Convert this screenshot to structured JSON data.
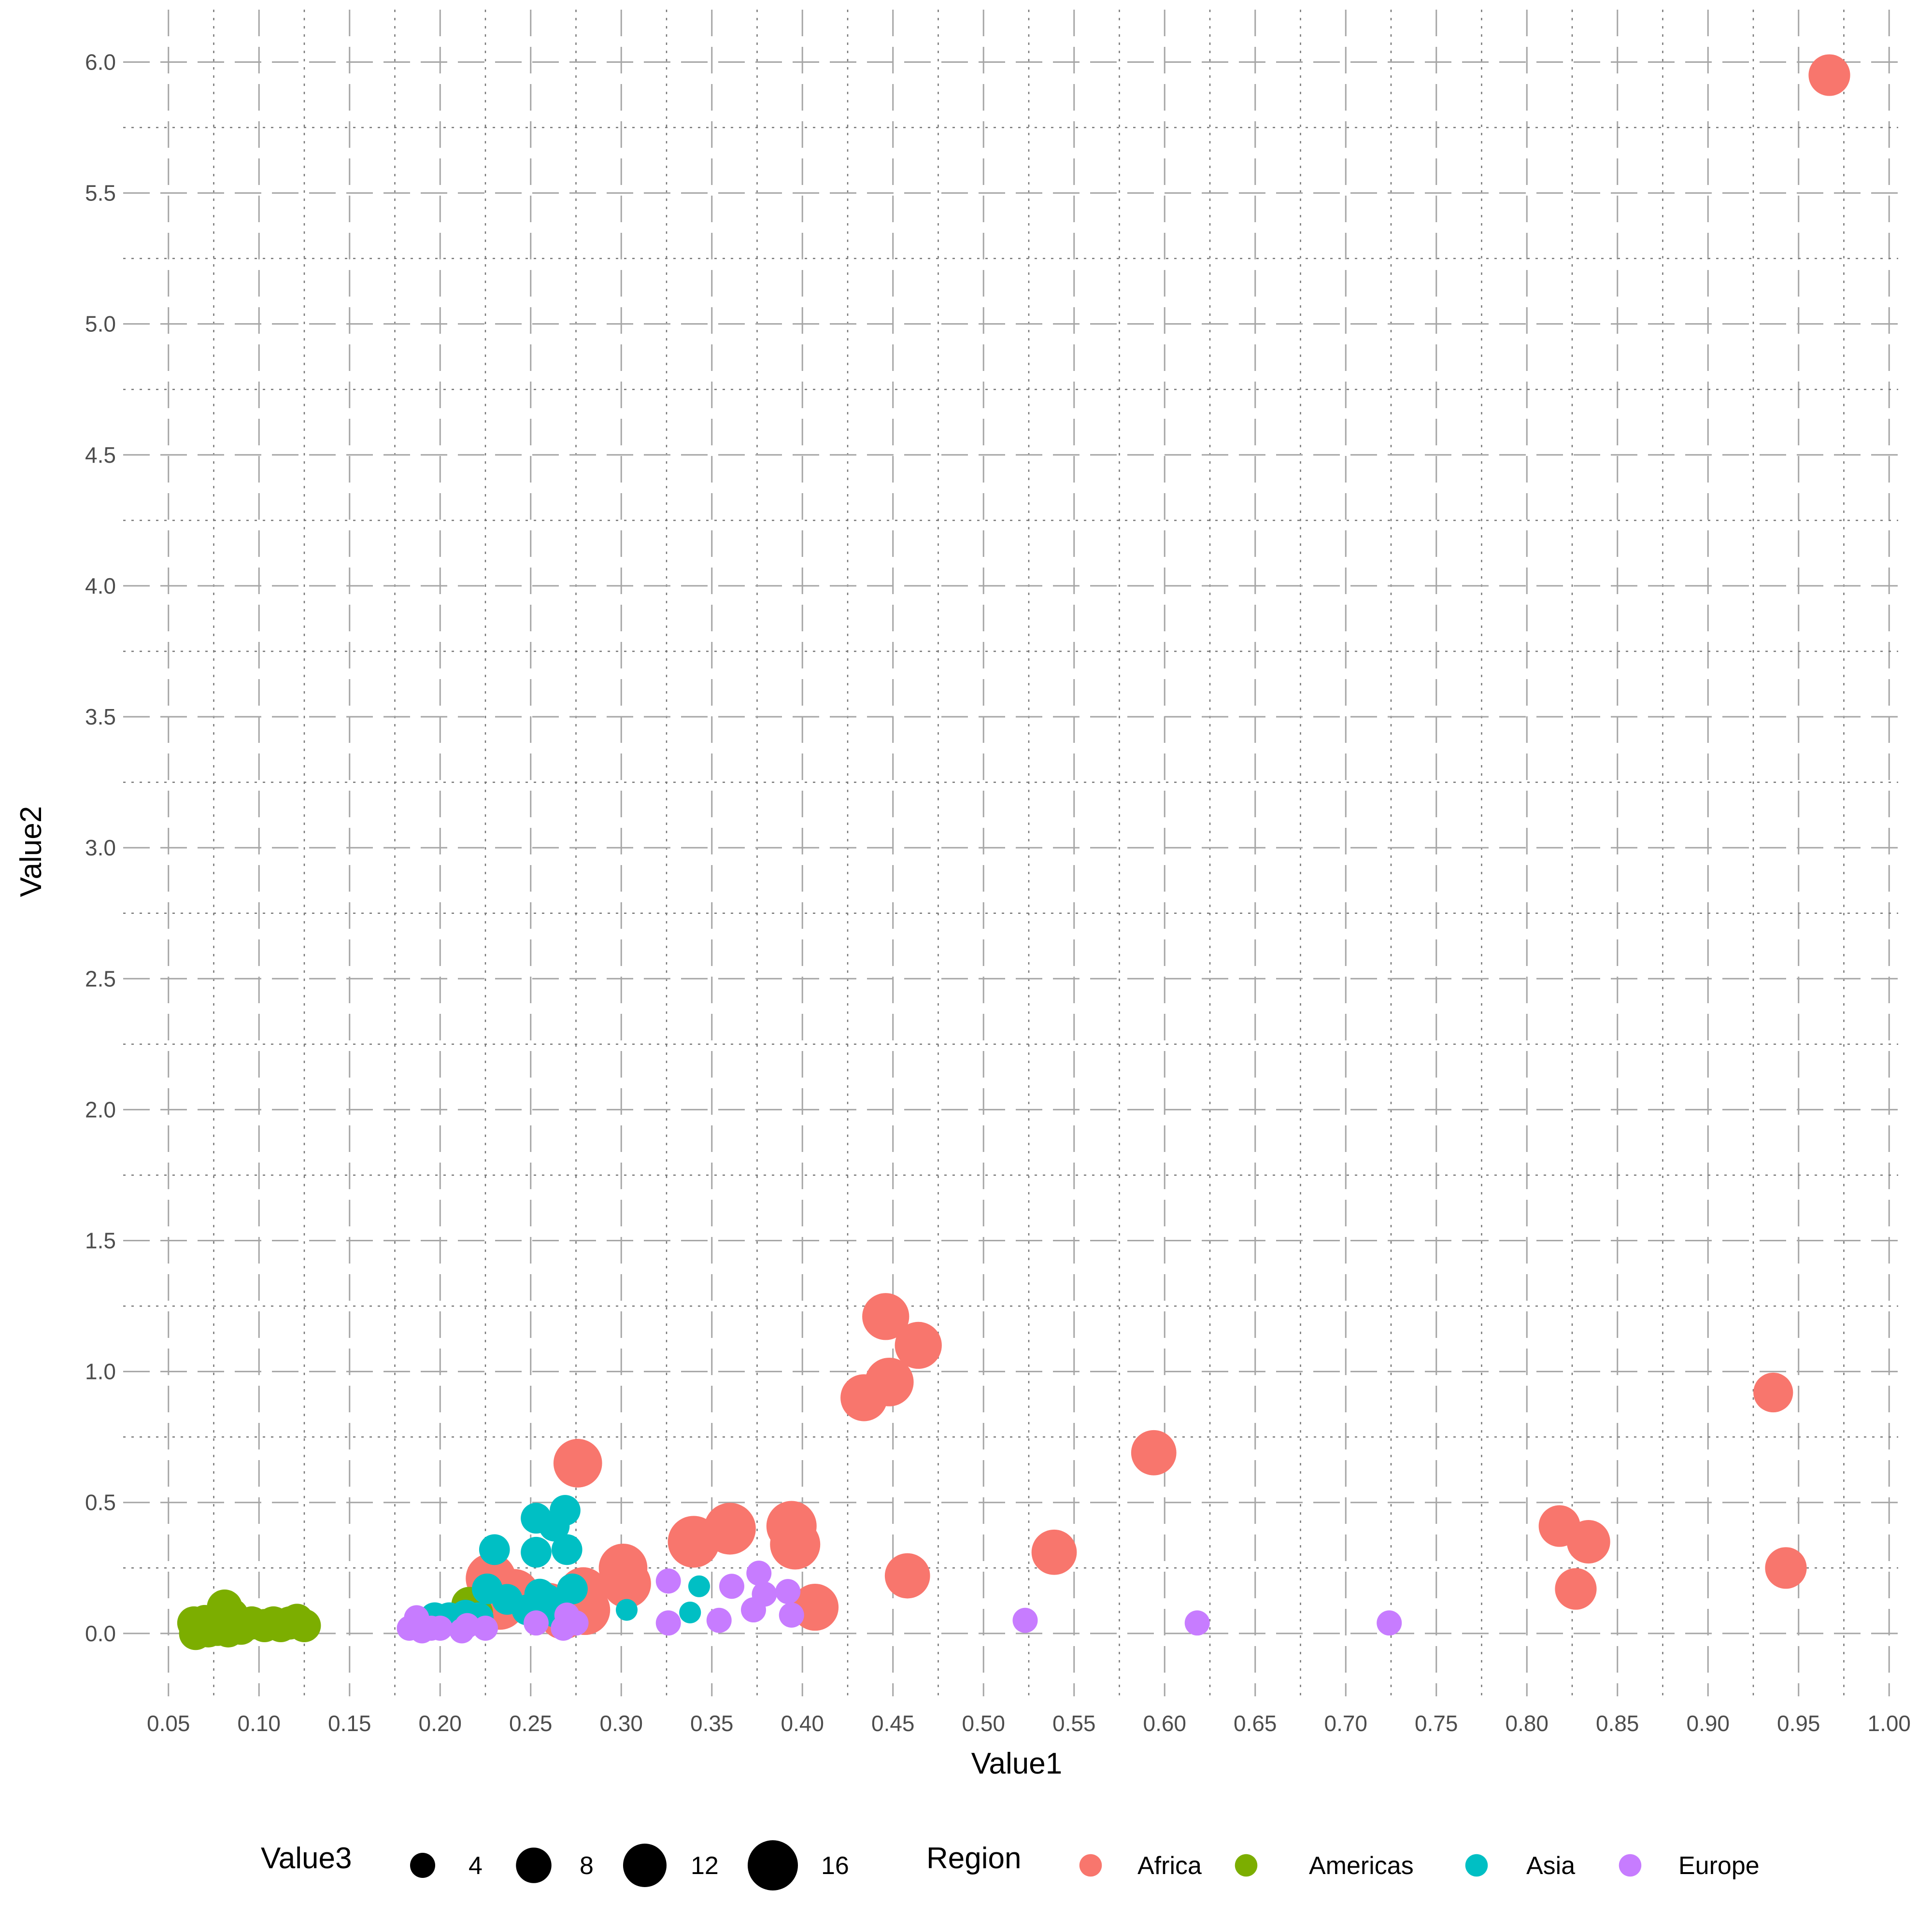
{
  "chart_data": {
    "type": "scatter",
    "xlabel": "Value1",
    "ylabel": "Value2",
    "xlim": [
      0.025,
      1.005
    ],
    "ylim": [
      -0.24,
      6.2
    ],
    "x_ticks": [
      0.05,
      0.1,
      0.15,
      0.2,
      0.25,
      0.3,
      0.35,
      0.4,
      0.45,
      0.5,
      0.55,
      0.6,
      0.65,
      0.7,
      0.75,
      0.8,
      0.85,
      0.9,
      0.95,
      1.0
    ],
    "x_tick_labels": [
      "0.05",
      "0.10",
      "0.15",
      "0.20",
      "0.25",
      "0.30",
      "0.35",
      "0.40",
      "0.45",
      "0.50",
      "0.55",
      "0.60",
      "0.65",
      "0.70",
      "0.75",
      "0.80",
      "0.85",
      "0.90",
      "0.95",
      "1.00"
    ],
    "y_ticks": [
      0.0,
      0.5,
      1.0,
      1.5,
      2.0,
      2.5,
      3.0,
      3.5,
      4.0,
      4.5,
      5.0,
      5.5,
      6.0
    ],
    "y_tick_labels": [
      "0.0",
      "0.5",
      "1.0",
      "1.5",
      "2.0",
      "2.5",
      "3.0",
      "3.5",
      "4.0",
      "4.5",
      "5.0",
      "5.5",
      "6.0"
    ],
    "grid": true,
    "legend_placement": "bottom",
    "size_legend": {
      "title": "Value3",
      "values": [
        4,
        8,
        12,
        16
      ],
      "labels": [
        "4",
        "8",
        "12",
        "16"
      ]
    },
    "color_legend": {
      "title": "Region",
      "entries": [
        {
          "label": "Africa",
          "color": "#F8766D"
        },
        {
          "label": "Americas",
          "color": "#7CAE00"
        },
        {
          "label": "Asia",
          "color": "#00BFC4"
        },
        {
          "label": "Europe",
          "color": "#C77CFF"
        }
      ]
    },
    "series": [
      {
        "name": "Africa",
        "color": "#F8766D",
        "points": [
          {
            "x": 0.967,
            "y": 5.95,
            "s": 11
          },
          {
            "x": 0.936,
            "y": 0.92,
            "s": 10
          },
          {
            "x": 0.943,
            "y": 0.25,
            "s": 11
          },
          {
            "x": 0.834,
            "y": 0.35,
            "s": 12
          },
          {
            "x": 0.818,
            "y": 0.41,
            "s": 11
          },
          {
            "x": 0.827,
            "y": 0.17,
            "s": 11
          },
          {
            "x": 0.594,
            "y": 0.69,
            "s": 13
          },
          {
            "x": 0.539,
            "y": 0.31,
            "s": 13
          },
          {
            "x": 0.458,
            "y": 0.22,
            "s": 13
          },
          {
            "x": 0.446,
            "y": 1.21,
            "s": 14
          },
          {
            "x": 0.464,
            "y": 1.1,
            "s": 14
          },
          {
            "x": 0.448,
            "y": 0.96,
            "s": 15
          },
          {
            "x": 0.434,
            "y": 0.9,
            "s": 14
          },
          {
            "x": 0.394,
            "y": 0.41,
            "s": 16
          },
          {
            "x": 0.396,
            "y": 0.34,
            "s": 16
          },
          {
            "x": 0.407,
            "y": 0.1,
            "s": 14
          },
          {
            "x": 0.36,
            "y": 0.4,
            "s": 17
          },
          {
            "x": 0.34,
            "y": 0.35,
            "s": 17
          },
          {
            "x": 0.301,
            "y": 0.25,
            "s": 15
          },
          {
            "x": 0.303,
            "y": 0.19,
            "s": 15
          },
          {
            "x": 0.276,
            "y": 0.65,
            "s": 15
          },
          {
            "x": 0.279,
            "y": 0.16,
            "s": 15
          },
          {
            "x": 0.28,
            "y": 0.09,
            "s": 16
          },
          {
            "x": 0.228,
            "y": 0.21,
            "s": 16
          },
          {
            "x": 0.233,
            "y": 0.11,
            "s": 16
          },
          {
            "x": 0.241,
            "y": 0.15,
            "s": 16
          },
          {
            "x": 0.26,
            "y": 0.1,
            "s": 15
          },
          {
            "x": 0.268,
            "y": 0.07,
            "s": 15
          }
        ]
      },
      {
        "name": "Americas",
        "color": "#7CAE00",
        "points": [
          {
            "x": 0.064,
            "y": 0.04,
            "s": 7
          },
          {
            "x": 0.065,
            "y": 0.0,
            "s": 7
          },
          {
            "x": 0.068,
            "y": 0.03,
            "s": 7
          },
          {
            "x": 0.07,
            "y": 0.05,
            "s": 6
          },
          {
            "x": 0.072,
            "y": 0.01,
            "s": 7
          },
          {
            "x": 0.075,
            "y": 0.04,
            "s": 7
          },
          {
            "x": 0.077,
            "y": 0.02,
            "s": 8
          },
          {
            "x": 0.079,
            "y": 0.06,
            "s": 7
          },
          {
            "x": 0.081,
            "y": 0.1,
            "s": 8
          },
          {
            "x": 0.083,
            "y": 0.01,
            "s": 7
          },
          {
            "x": 0.085,
            "y": 0.07,
            "s": 7
          },
          {
            "x": 0.087,
            "y": 0.03,
            "s": 7
          },
          {
            "x": 0.09,
            "y": 0.02,
            "s": 7
          },
          {
            "x": 0.096,
            "y": 0.04,
            "s": 7
          },
          {
            "x": 0.103,
            "y": 0.03,
            "s": 7
          },
          {
            "x": 0.108,
            "y": 0.04,
            "s": 7
          },
          {
            "x": 0.112,
            "y": 0.03,
            "s": 7
          },
          {
            "x": 0.117,
            "y": 0.04,
            "s": 7
          },
          {
            "x": 0.121,
            "y": 0.05,
            "s": 7
          },
          {
            "x": 0.125,
            "y": 0.03,
            "s": 7
          },
          {
            "x": 0.216,
            "y": 0.11,
            "s": 8
          },
          {
            "x": 0.22,
            "y": 0.08,
            "s": 7
          }
        ]
      },
      {
        "name": "Asia",
        "color": "#00BFC4",
        "points": [
          {
            "x": 0.269,
            "y": 0.47,
            "s": 6
          },
          {
            "x": 0.253,
            "y": 0.44,
            "s": 6
          },
          {
            "x": 0.263,
            "y": 0.41,
            "s": 6
          },
          {
            "x": 0.23,
            "y": 0.32,
            "s": 6
          },
          {
            "x": 0.253,
            "y": 0.31,
            "s": 6
          },
          {
            "x": 0.27,
            "y": 0.32,
            "s": 6
          },
          {
            "x": 0.226,
            "y": 0.17,
            "s": 6
          },
          {
            "x": 0.273,
            "y": 0.17,
            "s": 6
          },
          {
            "x": 0.255,
            "y": 0.15,
            "s": 6
          },
          {
            "x": 0.237,
            "y": 0.13,
            "s": 6
          },
          {
            "x": 0.259,
            "y": 0.13,
            "s": 6
          },
          {
            "x": 0.248,
            "y": 0.09,
            "s": 6
          },
          {
            "x": 0.264,
            "y": 0.08,
            "s": 6
          },
          {
            "x": 0.197,
            "y": 0.06,
            "s": 6
          },
          {
            "x": 0.205,
            "y": 0.06,
            "s": 6
          },
          {
            "x": 0.214,
            "y": 0.07,
            "s": 6
          },
          {
            "x": 0.221,
            "y": 0.06,
            "s": 6
          },
          {
            "x": 0.343,
            "y": 0.18,
            "s": 3
          },
          {
            "x": 0.303,
            "y": 0.09,
            "s": 3
          },
          {
            "x": 0.338,
            "y": 0.08,
            "s": 3
          }
        ]
      },
      {
        "name": "Europe",
        "color": "#C77CFF",
        "points": [
          {
            "x": 0.376,
            "y": 0.23,
            "s": 4
          },
          {
            "x": 0.326,
            "y": 0.2,
            "s": 4
          },
          {
            "x": 0.361,
            "y": 0.18,
            "s": 4
          },
          {
            "x": 0.392,
            "y": 0.16,
            "s": 4
          },
          {
            "x": 0.379,
            "y": 0.15,
            "s": 4
          },
          {
            "x": 0.373,
            "y": 0.09,
            "s": 4
          },
          {
            "x": 0.394,
            "y": 0.07,
            "s": 4
          },
          {
            "x": 0.354,
            "y": 0.05,
            "s": 4
          },
          {
            "x": 0.326,
            "y": 0.04,
            "s": 4
          },
          {
            "x": 0.523,
            "y": 0.05,
            "s": 4
          },
          {
            "x": 0.618,
            "y": 0.04,
            "s": 4
          },
          {
            "x": 0.724,
            "y": 0.04,
            "s": 4
          },
          {
            "x": 0.187,
            "y": 0.06,
            "s": 4
          },
          {
            "x": 0.183,
            "y": 0.02,
            "s": 4
          },
          {
            "x": 0.19,
            "y": 0.01,
            "s": 4
          },
          {
            "x": 0.195,
            "y": 0.02,
            "s": 4
          },
          {
            "x": 0.2,
            "y": 0.02,
            "s": 4
          },
          {
            "x": 0.212,
            "y": 0.01,
            "s": 4
          },
          {
            "x": 0.215,
            "y": 0.03,
            "s": 4
          },
          {
            "x": 0.225,
            "y": 0.02,
            "s": 4
          },
          {
            "x": 0.253,
            "y": 0.04,
            "s": 4
          },
          {
            "x": 0.268,
            "y": 0.02,
            "s": 4
          },
          {
            "x": 0.27,
            "y": 0.07,
            "s": 4
          },
          {
            "x": 0.275,
            "y": 0.04,
            "s": 4
          }
        ]
      }
    ]
  }
}
